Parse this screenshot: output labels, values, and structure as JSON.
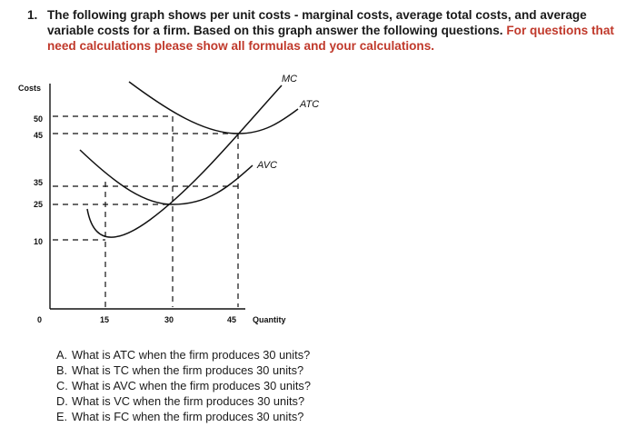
{
  "question": {
    "number": "1.",
    "text_part1": "The following graph shows per unit costs - marginal costs, average total costs, and average variable costs for a firm. Based on this graph answer the following questions. ",
    "text_part2": "For questions that need calculations please show all formulas and your calculations.",
    "accent_color": "#c0392b"
  },
  "graph": {
    "y_axis_title": "Costs",
    "x_axis_title": "Quantity",
    "y_ticks": [
      "50",
      "45",
      "35",
      "25",
      "10"
    ],
    "x_ticks": [
      "0",
      "15",
      "30",
      "45"
    ],
    "curves": {
      "mc_label": "MC",
      "atc_label": "ATC",
      "avc_label": "AVC"
    }
  },
  "sub_questions": [
    {
      "letter": "A.",
      "text": "What is ATC when the firm produces 30 units?"
    },
    {
      "letter": "B.",
      "text": "What is TC when the firm produces 30 units?"
    },
    {
      "letter": "C.",
      "text": "What is AVC when the firm produces 30 units?"
    },
    {
      "letter": "D.",
      "text": "What is VC when the firm produces 30 units?"
    },
    {
      "letter": "E.",
      "text": "What is FC when the firm produces 30 units?"
    }
  ]
}
